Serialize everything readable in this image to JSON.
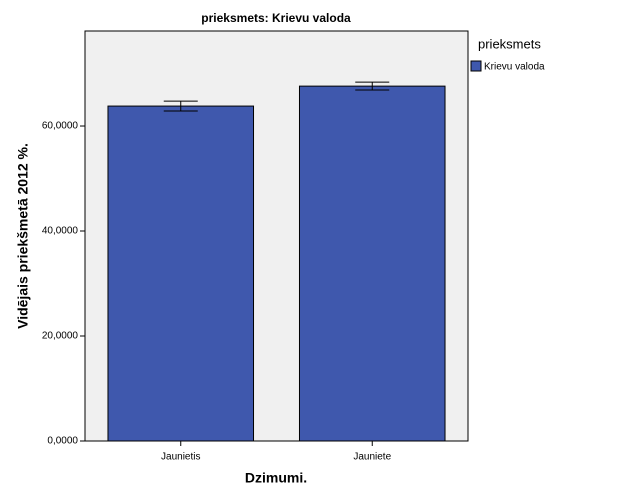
{
  "chart_data": {
    "type": "bar",
    "title": "prieksmets: Krievu valoda",
    "x_label": "Dzimumi.",
    "y_label": "Vidējais priekšmetā 2012 %.",
    "legend_title": "prieksmets",
    "categories": [
      "Jaunietis",
      "Jauniete"
    ],
    "series": [
      {
        "name": "Krievu valoda",
        "color": "#3f58ad",
        "values": [
          63.8,
          67.6
        ],
        "errors": [
          0.95,
          0.75
        ]
      }
    ],
    "ylim": [
      0,
      78.1
    ],
    "yticks": [
      {
        "value": 0,
        "label": "0,0000"
      },
      {
        "value": 20,
        "label": "20,0000"
      },
      {
        "value": 40,
        "label": "40,0000"
      },
      {
        "value": 60,
        "label": "60,0000"
      }
    ]
  }
}
